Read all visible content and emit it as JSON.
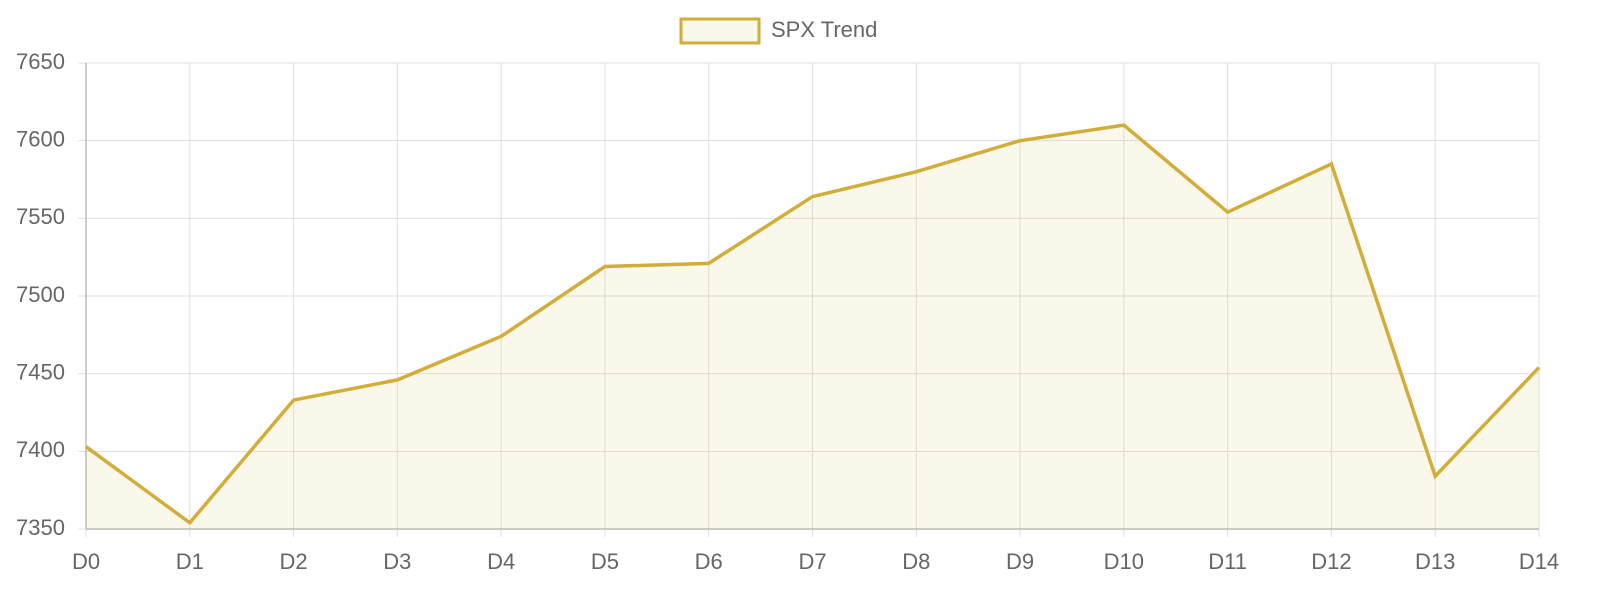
{
  "chart_data": {
    "type": "line",
    "categories": [
      "D0",
      "D1",
      "D2",
      "D3",
      "D4",
      "D5",
      "D6",
      "D7",
      "D8",
      "D9",
      "D10",
      "D11",
      "D12",
      "D13",
      "D14"
    ],
    "series": [
      {
        "name": "SPX Trend",
        "color": "#d2ad38",
        "fill": "rgba(210,173,56,0.1)",
        "values": [
          7403,
          7354,
          7433,
          7446,
          7474,
          7519,
          7521,
          7564,
          7580,
          7600,
          7610,
          7554,
          7585,
          7384,
          7454
        ]
      }
    ],
    "ylim": [
      7350,
      7650
    ],
    "yticks": [
      7350,
      7400,
      7450,
      7500,
      7550,
      7600,
      7650
    ],
    "grid": true,
    "legend": "top"
  }
}
